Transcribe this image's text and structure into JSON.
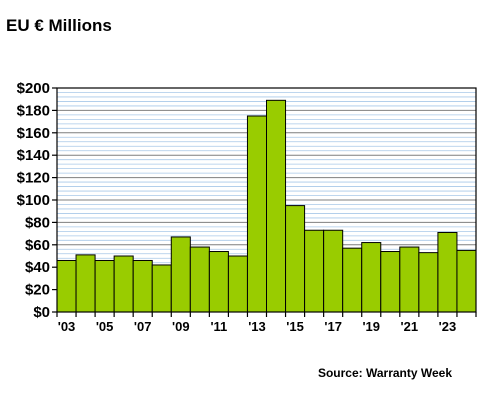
{
  "title": "EU € Millions",
  "source": "Source: Warranty Week",
  "colors": {
    "bar": "#99cc00",
    "bar_stroke": "#000000",
    "plot_bg": "#ffffff",
    "grid_major": "#7f7f7f",
    "grid_minor": "#a8c8e8"
  },
  "chart_data": {
    "type": "bar",
    "categories": [
      "'03",
      "'04",
      "'05",
      "'06",
      "'07",
      "'08",
      "'09",
      "'10",
      "'11",
      "'12",
      "'13",
      "'14",
      "'15",
      "'16",
      "'17",
      "'18",
      "'19",
      "'20",
      "'21",
      "'22",
      "'23",
      "'24"
    ],
    "x_tick_labels": [
      "'03",
      "'05",
      "'07",
      "'09",
      "'11",
      "'13",
      "'15",
      "'17",
      "'19",
      "'21",
      "'23"
    ],
    "values": [
      46,
      51,
      46,
      50,
      46,
      42,
      67,
      58,
      54,
      50,
      175,
      189,
      95,
      73,
      73,
      57,
      62,
      54,
      58,
      53,
      71,
      55
    ],
    "y_tick_labels": [
      "$0",
      "$20",
      "$40",
      "$60",
      "$80",
      "$100",
      "$120",
      "$140",
      "$160",
      "$180",
      "$200"
    ],
    "ylim": [
      0,
      200
    ],
    "grid": true,
    "legend": false
  }
}
